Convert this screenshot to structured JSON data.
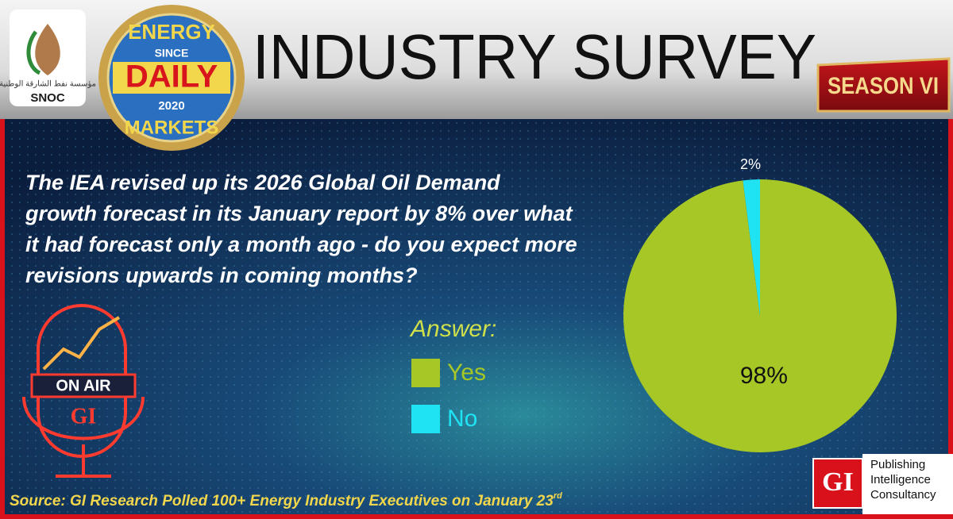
{
  "header": {
    "logo_arabic": "مؤسسة نفط الشارقة الوطنية",
    "logo_name": "SNOC",
    "badge": {
      "top": "ENERGY",
      "since": "SINCE",
      "main": "DAILY",
      "year": "2020",
      "bottom": "MARKETS"
    },
    "title": "INDUSTRY SURVEY",
    "season": "SEASON VI"
  },
  "question": [
    "The IEA revised up its 2026 Global Oil Demand",
    "growth forecast in its January report by 8% over what",
    "it had forecast only a month ago - do you expect more",
    "revisions upwards in coming months?"
  ],
  "mic": {
    "on_air": "ON AIR",
    "logo": "GI"
  },
  "chart_data": {
    "type": "pie",
    "legend_title": "Answer:",
    "categories": [
      "Yes",
      "No"
    ],
    "values": [
      98,
      2
    ],
    "value_labels": [
      "98%",
      "2%"
    ],
    "colors": [
      "#a6c725",
      "#1fe3f2"
    ]
  },
  "source": {
    "text": "Source: GI Research Polled 100+ Energy Industry Executives on January 23",
    "suffix": "rd"
  },
  "footer": {
    "logo": "GI",
    "lines": [
      "Publishing",
      "Intelligence",
      "Consultancy"
    ]
  }
}
